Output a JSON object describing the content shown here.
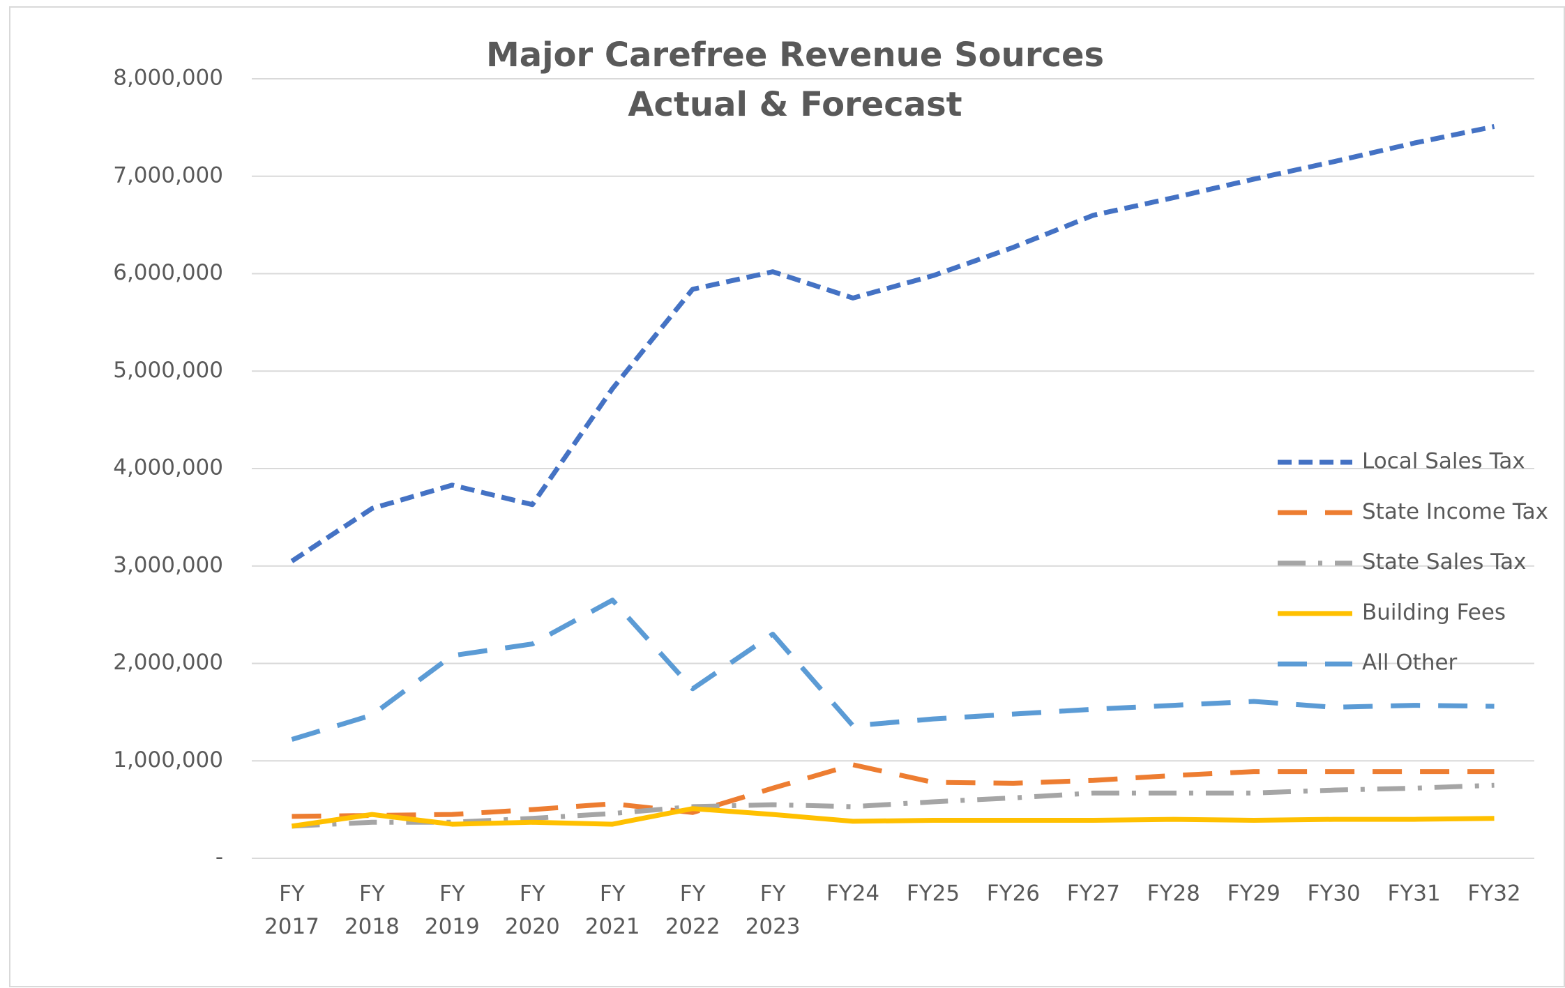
{
  "chart_data": {
    "type": "line",
    "title": "Major Carefree Revenue Sources",
    "subtitle": "Actual & Forecast",
    "categories": [
      "FY 2017",
      "FY 2018",
      "FY 2019",
      "FY 2020",
      "FY 2021",
      "FY 2022",
      "FY 2023",
      "FY24",
      "FY25",
      "FY26",
      "FY27",
      "FY28",
      "FY29",
      "FY30",
      "FY31",
      "FY32"
    ],
    "series": [
      {
        "name": "Local Sales Tax",
        "color": "#4472c4",
        "style": "dashed",
        "values": [
          3050000,
          3590000,
          3830000,
          3630000,
          4820000,
          5840000,
          6020000,
          5750000,
          5980000,
          6270000,
          6600000,
          6780000,
          6970000,
          7150000,
          7340000,
          7510000
        ]
      },
      {
        "name": "State Income Tax",
        "color": "#ed7d31",
        "style": "long-dash",
        "values": [
          430000,
          440000,
          450000,
          500000,
          560000,
          470000,
          720000,
          960000,
          780000,
          770000,
          800000,
          850000,
          890000,
          890000,
          890000,
          890000
        ]
      },
      {
        "name": "State Sales Tax",
        "color": "#a5a5a5",
        "style": "dash-dot",
        "values": [
          330000,
          370000,
          370000,
          410000,
          460000,
          530000,
          550000,
          530000,
          580000,
          620000,
          670000,
          670000,
          670000,
          700000,
          720000,
          750000
        ]
      },
      {
        "name": "Building Fees",
        "color": "#ffc000",
        "style": "solid",
        "values": [
          330000,
          450000,
          350000,
          370000,
          350000,
          510000,
          450000,
          380000,
          390000,
          390000,
          390000,
          400000,
          390000,
          400000,
          400000,
          410000
        ]
      },
      {
        "name": "All Other",
        "color": "#5b9bd5",
        "style": "long-dash",
        "values": [
          1220000,
          1470000,
          2080000,
          2200000,
          2650000,
          1740000,
          2300000,
          1360000,
          1430000,
          1480000,
          1530000,
          1570000,
          1610000,
          1550000,
          1570000,
          1560000
        ]
      }
    ],
    "ylim": [
      0,
      8000000
    ],
    "yticks": [
      {
        "value": 0,
        "label": "-"
      },
      {
        "value": 1000000,
        "label": "1,000,000"
      },
      {
        "value": 2000000,
        "label": "2,000,000"
      },
      {
        "value": 3000000,
        "label": "3,000,000"
      },
      {
        "value": 4000000,
        "label": "4,000,000"
      },
      {
        "value": 5000000,
        "label": "5,000,000"
      },
      {
        "value": 6000000,
        "label": "6,000,000"
      },
      {
        "value": 7000000,
        "label": "7,000,000"
      },
      {
        "value": 8000000,
        "label": "8,000,000"
      }
    ],
    "grid": true,
    "legend": "right"
  }
}
